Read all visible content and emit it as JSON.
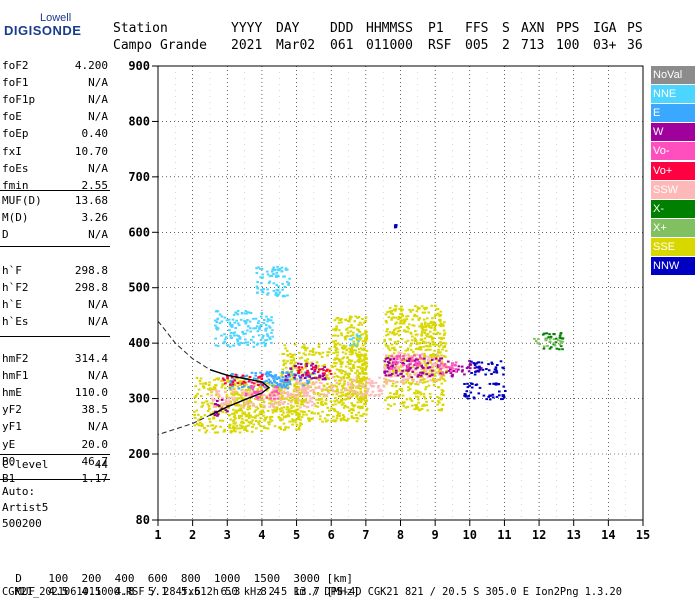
{
  "logo": {
    "top": "Lowell",
    "main": "DIGISONDE"
  },
  "header": {
    "row1": [
      "Station",
      "YYYY",
      "DAY",
      "DDD",
      "HHMMSS",
      "P1",
      "FFS",
      "S",
      "AXN",
      "PPS",
      "IGA",
      "PS"
    ],
    "row2": [
      "Campo Grande",
      "2021",
      "Mar02",
      "061",
      "011000",
      "RSF",
      "005",
      "2",
      "713",
      "100",
      "03+",
      "36"
    ]
  },
  "params_group1": [
    {
      "name": "foF2",
      "value": "4.200"
    },
    {
      "name": "foF1",
      "value": "N/A"
    },
    {
      "name": "foF1p",
      "value": "N/A"
    },
    {
      "name": "foE",
      "value": "N/A"
    },
    {
      "name": "foEp",
      "value": "0.40"
    },
    {
      "name": "fxI",
      "value": "10.70"
    },
    {
      "name": "foEs",
      "value": "N/A"
    },
    {
      "name": "fmin",
      "value": "2.55"
    }
  ],
  "params_group2": [
    {
      "name": "MUF(D)",
      "value": "13.68"
    },
    {
      "name": "M(D)",
      "value": "3.26"
    },
    {
      "name": "D",
      "value": "N/A"
    }
  ],
  "params_group3": [
    {
      "name": "h`F",
      "value": "298.8"
    },
    {
      "name": "h`F2",
      "value": "298.8"
    },
    {
      "name": "h`E",
      "value": "N/A"
    },
    {
      "name": "h`Es",
      "value": "N/A"
    }
  ],
  "params_group4": [
    {
      "name": "hmF2",
      "value": "314.4"
    },
    {
      "name": "hmF1",
      "value": "N/A"
    },
    {
      "name": "hmE",
      "value": "110.0"
    },
    {
      "name": "yF2",
      "value": "38.5"
    },
    {
      "name": "yF1",
      "value": "N/A"
    },
    {
      "name": "yE",
      "value": "20.0"
    },
    {
      "name": "B0",
      "value": "46.7"
    },
    {
      "name": "B1",
      "value": "1.17"
    }
  ],
  "params_group5": [
    {
      "name": "C-level",
      "value": "44"
    }
  ],
  "auto": {
    "line1": "Auto:",
    "line2": "Artist5",
    "line3": "500200"
  },
  "legend": [
    {
      "label": "NoVal",
      "color": "#8c8c8c"
    },
    {
      "label": "NNE",
      "color": "#4cd6ff"
    },
    {
      "label": "E",
      "color": "#3aa8ff"
    },
    {
      "label": "W",
      "color": "#a0009c"
    },
    {
      "label": "Vo-",
      "color": "#ff4fbf"
    },
    {
      "label": "Vo+",
      "color": "#ff0040"
    },
    {
      "label": "SSW",
      "color": "#ffb8b8"
    },
    {
      "label": "X-",
      "color": "#008000"
    },
    {
      "label": "X+",
      "color": "#80c060"
    },
    {
      "label": "SSE",
      "color": "#d8d800"
    },
    {
      "label": "NNW",
      "color": "#0000c0"
    }
  ],
  "footer": {
    "row1_label": "D",
    "row1_values": [
      "100",
      "200",
      "400",
      "600",
      "800",
      "1000",
      "1500",
      "3000"
    ],
    "row1_unit": "[km]",
    "row2_label": "MUF",
    "row2_values": [
      "4.5",
      "4.5",
      "4.8",
      "5.1",
      "5.6",
      "6.3",
      "8.4",
      "13.7"
    ],
    "row2_unit": "[MHz]",
    "row3": "CGK21_2021061011000.RSF / 284fx512h 50 kHz 2.5 km / DPS-4D CGK21 821 / 20.5 S 305.0 E Ion2Png 1.3.20"
  },
  "chart_data": {
    "type": "scatter",
    "xlabel": "",
    "ylabel": "",
    "xlim": [
      1,
      15
    ],
    "ylim": [
      80,
      900
    ],
    "x_ticks": [
      "1",
      "2",
      "3",
      "4",
      "5",
      "6",
      "7",
      "8",
      "9",
      "10",
      "11",
      "12",
      "13",
      "14",
      "15"
    ],
    "y_ticks": [
      "80",
      "200",
      "300",
      "400",
      "500",
      "600",
      "700",
      "800",
      "900"
    ],
    "grid": true,
    "legend_position": "right",
    "series": [
      {
        "name": "SSE",
        "color": "#d8d800",
        "regions": [
          [
            2.0,
            4.0,
            240,
            340
          ],
          [
            3.0,
            5.2,
            245,
            330
          ],
          [
            4.5,
            7.0,
            260,
            400
          ],
          [
            6.0,
            7.0,
            280,
            450
          ],
          [
            6.7,
            7.0,
            290,
            420
          ],
          [
            7.5,
            9.2,
            280,
            470
          ],
          [
            8.5,
            9.3,
            330,
            440
          ]
        ]
      },
      {
        "name": "SSW",
        "color": "#ffb8b8",
        "regions": [
          [
            2.5,
            5.5,
            285,
            320
          ],
          [
            4.5,
            7.5,
            305,
            340
          ],
          [
            7.5,
            9.2,
            330,
            385
          ]
        ]
      },
      {
        "name": "E",
        "color": "#3aa8ff",
        "regions": [
          [
            3.0,
            4.8,
            320,
            350
          ],
          [
            4.0,
            5.5,
            325,
            350
          ]
        ]
      },
      {
        "name": "NNE",
        "color": "#4cd6ff",
        "regions": [
          [
            2.6,
            4.3,
            395,
            460
          ],
          [
            3.8,
            4.8,
            485,
            540
          ],
          [
            6.5,
            6.8,
            390,
            420
          ]
        ]
      },
      {
        "name": "W",
        "color": "#a0009c",
        "regions": [
          [
            2.6,
            3.0,
            270,
            300
          ],
          [
            4.6,
            5.8,
            335,
            365
          ],
          [
            7.5,
            9.5,
            340,
            375
          ],
          [
            9.5,
            10.3,
            345,
            370
          ]
        ]
      },
      {
        "name": "Vo-",
        "color": "#ff4fbf",
        "regions": [
          [
            3.5,
            4.5,
            300,
            325
          ],
          [
            7.6,
            8.6,
            355,
            380
          ],
          [
            9.0,
            9.6,
            345,
            370
          ]
        ]
      },
      {
        "name": "Vo+",
        "color": "#ff0040",
        "regions": [
          [
            2.8,
            4.0,
            325,
            345
          ],
          [
            5.0,
            6.0,
            345,
            360
          ]
        ]
      },
      {
        "name": "NNW",
        "color": "#0000c0",
        "regions": [
          [
            9.8,
            11.0,
            300,
            330
          ],
          [
            10.0,
            11.0,
            345,
            370
          ],
          [
            7.8,
            7.9,
            610,
            615
          ]
        ]
      },
      {
        "name": "X-",
        "color": "#008000",
        "regions": [
          [
            12.0,
            12.7,
            390,
            420
          ]
        ]
      },
      {
        "name": "X+",
        "color": "#80c060",
        "regions": [
          [
            11.8,
            12.8,
            395,
            410
          ]
        ]
      }
    ],
    "profile_curve": [
      [
        1.0,
        440
      ],
      [
        1.5,
        400
      ],
      [
        2.0,
        372
      ],
      [
        2.5,
        352
      ],
      [
        3.0,
        342
      ],
      [
        3.5,
        336
      ],
      [
        4.0,
        330
      ],
      [
        4.2,
        320
      ],
      [
        4.0,
        310
      ],
      [
        3.5,
        298
      ],
      [
        3.0,
        285
      ],
      [
        2.5,
        270
      ],
      [
        2.0,
        255
      ],
      [
        1.5,
        245
      ],
      [
        1.0,
        235
      ]
    ]
  }
}
